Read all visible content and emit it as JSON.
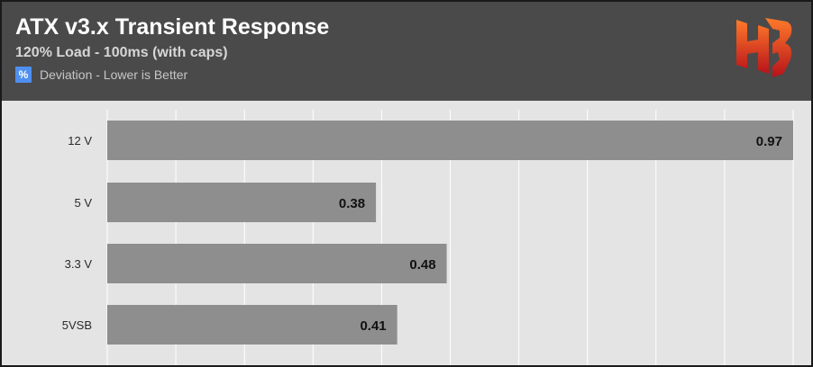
{
  "header": {
    "title": "ATX v3.x Transient Response",
    "subtitle": "120% Load - 100ms (with caps)",
    "legend_icon": "%",
    "legend_label": "Deviation - Lower is Better",
    "logo": "HB-logo-icon"
  },
  "colors": {
    "header_bg": "#4a4a4a",
    "plot_bg": "#e4e4e4",
    "bar": "#8e8e8e",
    "legend_badge": "#4f8ff0",
    "logo_orange": "#f25a1f",
    "logo_red": "#c8151b"
  },
  "chart_data": {
    "type": "bar",
    "orientation": "horizontal",
    "categories": [
      "12 V",
      "5 V",
      "3.3 V",
      "5VSB"
    ],
    "series": [
      {
        "values": [
          0.97,
          0.38,
          0.48,
          0.41
        ]
      }
    ],
    "data_labels": [
      "0.97",
      "0.38",
      "0.48",
      "0.41"
    ],
    "title": "ATX v3.x Transient Response",
    "subtitle": "120% Load - 100ms (with caps)",
    "xlim": [
      0,
      0.97
    ],
    "grid": true,
    "legend": "top-left"
  }
}
